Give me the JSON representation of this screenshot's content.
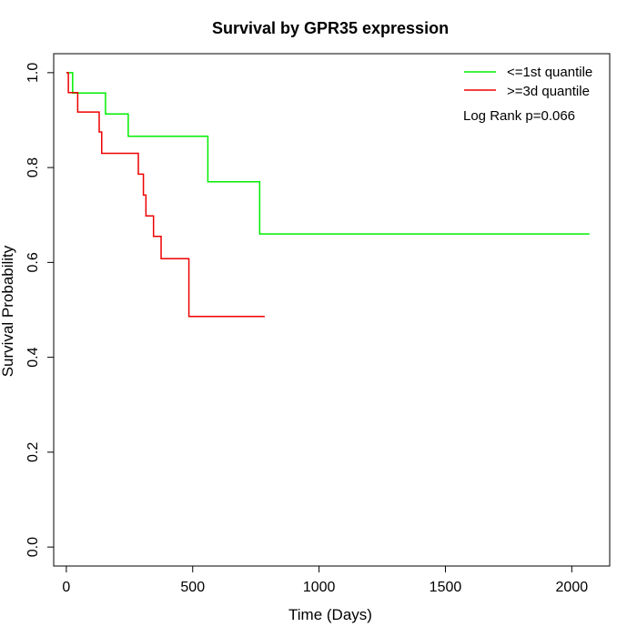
{
  "chart_data": {
    "type": "line",
    "title": "Survival by GPR35 expression",
    "xlabel": "Time (Days)",
    "ylabel": "Survival Probability",
    "xlim": [
      -50,
      2150
    ],
    "ylim": [
      -0.04,
      1.04
    ],
    "xticks": [
      0,
      500,
      1000,
      1500,
      2000
    ],
    "xtick_labels": [
      "0",
      "500",
      "1000",
      "1500",
      "2000"
    ],
    "yticks": [
      0.0,
      0.2,
      0.4,
      0.6,
      0.8,
      1.0
    ],
    "ytick_labels": [
      "0.0",
      "0.2",
      "0.4",
      "0.6",
      "0.8",
      "1.0"
    ],
    "grid": false,
    "legend_position": "top-right",
    "annotation": "Log Rank p=0.066",
    "series": [
      {
        "name": "<=1st quantile",
        "color": "#00ee00",
        "step": true,
        "points": [
          [
            0,
            1.0
          ],
          [
            25,
            1.0
          ],
          [
            25,
            0.957
          ],
          [
            155,
            0.957
          ],
          [
            155,
            0.913
          ],
          [
            245,
            0.913
          ],
          [
            245,
            0.866
          ],
          [
            560,
            0.866
          ],
          [
            560,
            0.77
          ],
          [
            765,
            0.77
          ],
          [
            765,
            0.66
          ],
          [
            2070,
            0.66
          ]
        ]
      },
      {
        "name": ">=3d quantile",
        "color": "#ee0000",
        "step": true,
        "points": [
          [
            0,
            1.0
          ],
          [
            8,
            1.0
          ],
          [
            8,
            0.958
          ],
          [
            45,
            0.958
          ],
          [
            45,
            0.917
          ],
          [
            130,
            0.917
          ],
          [
            130,
            0.875
          ],
          [
            140,
            0.875
          ],
          [
            140,
            0.83
          ],
          [
            285,
            0.83
          ],
          [
            285,
            0.786
          ],
          [
            305,
            0.786
          ],
          [
            305,
            0.742
          ],
          [
            315,
            0.742
          ],
          [
            315,
            0.698
          ],
          [
            345,
            0.698
          ],
          [
            345,
            0.655
          ],
          [
            375,
            0.655
          ],
          [
            375,
            0.608
          ],
          [
            485,
            0.608
          ],
          [
            485,
            0.486
          ],
          [
            785,
            0.486
          ]
        ]
      }
    ]
  }
}
